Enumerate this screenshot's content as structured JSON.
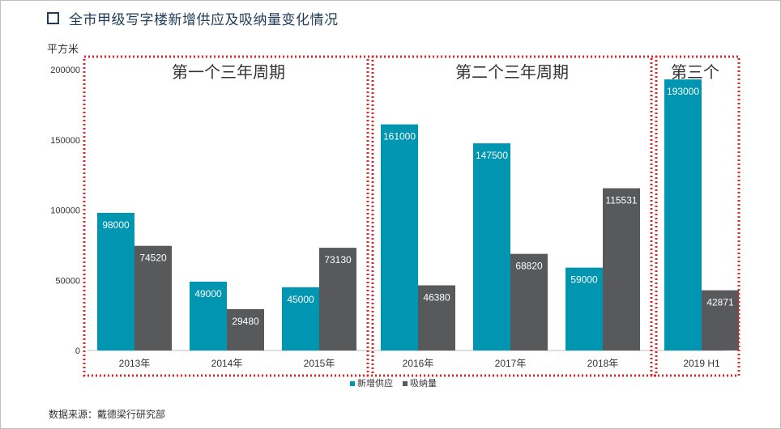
{
  "title": "全市甲级写字楼新增供应及吸纳量变化情况",
  "unit": "平方米",
  "source": "数据来源：戴德梁行研究部",
  "colors": {
    "supply": "#0095b0",
    "absorption": "#58595b",
    "period_border": "#e0242a",
    "title": "#1f3b5a"
  },
  "chart_data": {
    "type": "bar",
    "categories": [
      "2013年",
      "2014年",
      "2015年",
      "2016年",
      "2017年",
      "2018年",
      "2019 H1"
    ],
    "series": [
      {
        "name": "新增供应",
        "values": [
          98000,
          49000,
          45000,
          161000,
          147500,
          59000,
          193000
        ]
      },
      {
        "name": "吸纳量",
        "values": [
          74520,
          29480,
          73130,
          46380,
          68820,
          115531,
          42871
        ]
      }
    ],
    "data_labels": {
      "新增供应": [
        "98000",
        "49000",
        "45000",
        "161000",
        "147500",
        "59000",
        "193000"
      ],
      "吸纳量": [
        "74520",
        "29480",
        "73130",
        "46380",
        "68820",
        "115531",
        "42871"
      ]
    },
    "y_ticks": [
      "0",
      "50000",
      "100000",
      "150000",
      "200000"
    ],
    "ylim": [
      0,
      200000
    ],
    "legend_position": "bottom-center",
    "grid": false,
    "periods": [
      {
        "label": "第一个三年周期",
        "categories": [
          "2013年",
          "2014年",
          "2015年"
        ]
      },
      {
        "label": "第二个三年周期",
        "categories": [
          "2016年",
          "2017年",
          "2018年"
        ]
      },
      {
        "label": "第三个",
        "categories": [
          "2019 H1"
        ]
      }
    ]
  }
}
